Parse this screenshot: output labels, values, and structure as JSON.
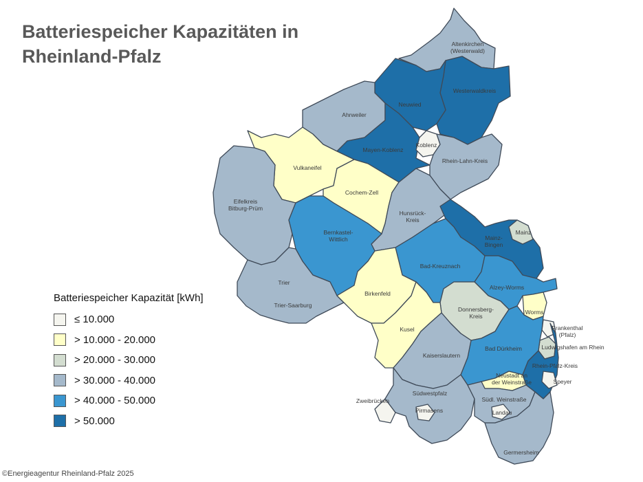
{
  "title": "Batteriespeicher Kapazitäten in Rheinland-Pfalz",
  "legend": {
    "title": "Batteriespeicher Kapazität [kWh]",
    "classes": [
      {
        "label": "≤ 10.000",
        "color": "#f5f5ef"
      },
      {
        "label": "> 10.000 - 20.000",
        "color": "#ffffc8"
      },
      {
        "label": "> 20.000 - 30.000",
        "color": "#d3ddd0"
      },
      {
        "label": "> 30.000 - 40.000",
        "color": "#a5b9cb"
      },
      {
        "label": "> 40.000 - 50.000",
        "color": "#3a96d0"
      },
      {
        "label": "> 50.000",
        "color": "#1e6fa8"
      }
    ]
  },
  "regions": [
    {
      "name": "Altenkirchen (Westerwald)",
      "class": 3
    },
    {
      "name": "Westerwaldkreis",
      "class": 5
    },
    {
      "name": "Neuwied",
      "class": 5
    },
    {
      "name": "Ahrweiler",
      "class": 3
    },
    {
      "name": "Mayen-Koblenz",
      "class": 5
    },
    {
      "name": "Koblenz",
      "class": 0
    },
    {
      "name": "Rhein-Lahn-Kreis",
      "class": 3
    },
    {
      "name": "Vulkaneifel",
      "class": 1
    },
    {
      "name": "Cochem-Zell",
      "class": 1
    },
    {
      "name": "Eifelkreis Bitburg-Prüm",
      "class": 3
    },
    {
      "name": "Hunsrück-Kreis",
      "class": 3
    },
    {
      "name": "Bernkastel-Wittlich",
      "class": 4
    },
    {
      "name": "Mainz-Bingen",
      "class": 5
    },
    {
      "name": "Mainz",
      "class": 2
    },
    {
      "name": "Bad-Kreuznach",
      "class": 4
    },
    {
      "name": "Alzey-Worms",
      "class": 4
    },
    {
      "name": "Trier",
      "class": 0
    },
    {
      "name": "Trier-Saarburg",
      "class": 3
    },
    {
      "name": "Birkenfeld",
      "class": 1
    },
    {
      "name": "Donnersberg-Kreis",
      "class": 2
    },
    {
      "name": "Worms",
      "class": 1
    },
    {
      "name": "Frankenthal (Pfalz)",
      "class": 0
    },
    {
      "name": "Ludwigshafen am Rhein",
      "class": 2
    },
    {
      "name": "Kusel",
      "class": 1
    },
    {
      "name": "Bad Dürkheim",
      "class": 4
    },
    {
      "name": "Kaiserslautern",
      "class": 3
    },
    {
      "name": "Rhein-Pfalz-Kreis",
      "class": 5
    },
    {
      "name": "Neustadt an der Weinstraße",
      "class": 1
    },
    {
      "name": "Speyer",
      "class": 0
    },
    {
      "name": "Südwestpfalz",
      "class": 3
    },
    {
      "name": "Zweibrücken",
      "class": 0
    },
    {
      "name": "Pirmasens",
      "class": 0
    },
    {
      "name": "Südl. Weinstraße",
      "class": 3
    },
    {
      "name": "Landau",
      "class": 0
    },
    {
      "name": "Germersheim",
      "class": 3
    }
  ],
  "credit": "©Energieagentur Rheinland-Pfalz 2025"
}
